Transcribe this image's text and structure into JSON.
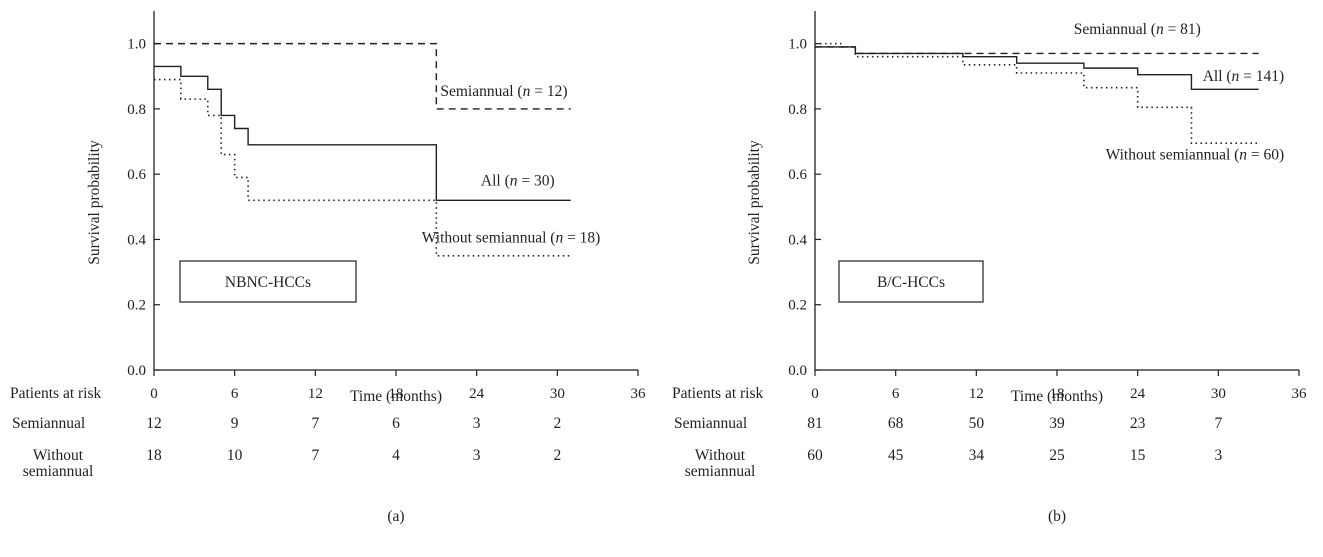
{
  "chart_data": [
    {
      "type": "line",
      "subtype": "kaplan-meier step",
      "panel_label": "(a)",
      "box_label": "NBNC-HCCs",
      "xlabel": "Time (months)",
      "ylabel": "Survival probability",
      "xlim": [
        0,
        36
      ],
      "ylim": [
        0,
        1.1
      ],
      "xticks": [
        "0",
        "6",
        "12",
        "18",
        "24",
        "30",
        "36"
      ],
      "yticks": [
        "0.0",
        "0.2",
        "0.4",
        "0.6",
        "0.8",
        "1.0"
      ],
      "grid": false,
      "series": [
        {
          "key": "semiannual",
          "name": "Semiannual",
          "n": "12",
          "style": "dashed",
          "steps": [
            [
              0,
              1.0
            ],
            [
              21,
              0.8
            ],
            [
              31,
              0.8
            ]
          ]
        },
        {
          "key": "all",
          "name": "All",
          "n": "30",
          "style": "solid",
          "steps": [
            [
              0,
              0.93
            ],
            [
              2,
              0.9
            ],
            [
              4,
              0.86
            ],
            [
              5,
              0.78
            ],
            [
              6,
              0.74
            ],
            [
              7,
              0.69
            ],
            [
              21,
              0.52
            ],
            [
              31,
              0.52
            ]
          ]
        },
        {
          "key": "without",
          "name": "Without semiannual",
          "n": "18",
          "style": "dotted",
          "steps": [
            [
              0,
              0.89
            ],
            [
              2,
              0.83
            ],
            [
              4,
              0.78
            ],
            [
              5,
              0.66
            ],
            [
              6,
              0.59
            ],
            [
              7,
              0.52
            ],
            [
              21,
              0.35
            ],
            [
              31,
              0.35
            ]
          ]
        }
      ],
      "annotations": [
        {
          "series": "semiannual",
          "x": 21.3,
          "y": 0.84,
          "anchor": "start",
          "text_pre": "Semiannual (",
          "italic": "n",
          "text_post": " = 12)"
        },
        {
          "series": "all",
          "x": 29.8,
          "y": 0.565,
          "anchor": "end",
          "text_pre": "All (",
          "italic": "n",
          "text_post": " = 30)"
        },
        {
          "series": "without",
          "x": 33.2,
          "y": 0.39,
          "anchor": "end",
          "text_pre": "Without semiannual (",
          "italic": "n",
          "text_post": " = 18)"
        }
      ],
      "risk_table": {
        "title": "Patients at risk",
        "times": [
          0,
          6,
          12,
          18,
          24,
          30
        ],
        "rows": [
          {
            "label": [
              "Semiannual"
            ],
            "values": [
              "12",
              "9",
              "7",
              "6",
              "3",
              "2"
            ]
          },
          {
            "label": [
              "Without",
              "semiannual"
            ],
            "values": [
              "18",
              "10",
              "7",
              "4",
              "3",
              "2"
            ]
          }
        ]
      }
    },
    {
      "type": "line",
      "subtype": "kaplan-meier step",
      "panel_label": "(b)",
      "box_label": "B/C-HCCs",
      "xlabel": "Time (months)",
      "ylabel": "Survival probability",
      "xlim": [
        0,
        36
      ],
      "ylim": [
        0,
        1.1
      ],
      "xticks": [
        "0",
        "6",
        "12",
        "18",
        "24",
        "30",
        "36"
      ],
      "yticks": [
        "0.0",
        "0.2",
        "0.4",
        "0.6",
        "0.8",
        "1.0"
      ],
      "grid": false,
      "series": [
        {
          "key": "semiannual",
          "name": "Semiannual",
          "n": "81",
          "style": "dashed",
          "steps": [
            [
              0,
              0.99
            ],
            [
              3,
              0.97
            ],
            [
              33,
              0.97
            ]
          ]
        },
        {
          "key": "all",
          "name": "All",
          "n": "141",
          "style": "solid",
          "steps": [
            [
              0,
              0.99
            ],
            [
              3,
              0.97
            ],
            [
              11,
              0.96
            ],
            [
              15,
              0.94
            ],
            [
              20,
              0.925
            ],
            [
              24,
              0.905
            ],
            [
              28,
              0.86
            ],
            [
              33,
              0.86
            ]
          ]
        },
        {
          "key": "without",
          "name": "Without semiannual",
          "n": "60",
          "style": "dotted",
          "steps": [
            [
              0,
              1.0
            ],
            [
              2,
              0.99
            ],
            [
              3,
              0.96
            ],
            [
              11,
              0.935
            ],
            [
              15,
              0.91
            ],
            [
              20,
              0.865
            ],
            [
              24,
              0.805
            ],
            [
              28,
              0.695
            ],
            [
              33,
              0.695
            ]
          ]
        }
      ],
      "annotations": [
        {
          "series": "semiannual",
          "x": 28.7,
          "y": 1.03,
          "anchor": "end",
          "text_pre": "Semiannual (",
          "italic": "n",
          "text_post": " = 81)"
        },
        {
          "series": "all",
          "x": 34.9,
          "y": 0.885,
          "anchor": "end",
          "text_pre": "All (",
          "italic": "n",
          "text_post": " = 141)"
        },
        {
          "series": "without",
          "x": 34.9,
          "y": 0.645,
          "anchor": "end",
          "text_pre": "Without semiannual (",
          "italic": "n",
          "text_post": " = 60)"
        }
      ],
      "risk_table": {
        "title": "Patients at risk",
        "times": [
          0,
          6,
          12,
          18,
          24,
          30
        ],
        "rows": [
          {
            "label": [
              "Semiannual"
            ],
            "values": [
              "81",
              "68",
              "50",
              "39",
              "23",
              "7"
            ]
          },
          {
            "label": [
              "Without",
              "semiannual"
            ],
            "values": [
              "60",
              "45",
              "34",
              "25",
              "15",
              "3"
            ]
          }
        ]
      }
    }
  ]
}
